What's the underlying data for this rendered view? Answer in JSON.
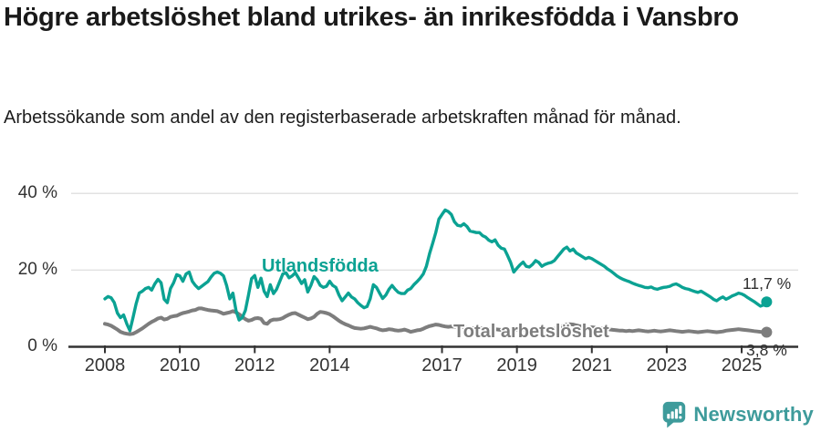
{
  "header": {
    "title": "Högre arbetslöshet bland utrikes- än inrikesfödda i Vansbro",
    "subtitle": "Arbetssökande som andel av den registerbaserade arbetskraften månad för månad."
  },
  "footer": {
    "brand": "Newsworthy",
    "brand_color": "#3E9B9B",
    "logo_icon": "newsworthy-speech-bubble-bars-icon"
  },
  "colors": {
    "foreign_born_line": "#0BA293",
    "total_line": "#7D7D7D",
    "grid": "#E2E2E2",
    "axis": "#333333",
    "text": "#1A1A1A"
  },
  "chart_data": {
    "type": "line",
    "title": "Högre arbetslöshet bland utrikes- än inrikesfödda i Vansbro",
    "subtitle": "Arbetssökande som andel av den registerbaserade arbetskraften månad för månad.",
    "xlabel": "",
    "ylabel": "",
    "unit": "%",
    "x_start_year": 2008,
    "x_step_months": 1,
    "x_end": "2025-09",
    "xlim": [
      2007.8,
      2026.5
    ],
    "ylim": [
      0,
      42
    ],
    "grid": "horizontal",
    "legend_position": "inline-labels",
    "x_ticks": [
      2008,
      2010,
      2012,
      2014,
      2017,
      2019,
      2021,
      2023,
      2025
    ],
    "y_ticks": [
      {
        "value": 0,
        "label": "0 %"
      },
      {
        "value": 20,
        "label": "20 %"
      },
      {
        "value": 40,
        "label": "40 %"
      }
    ],
    "series": [
      {
        "name": "Utlandsfödda",
        "color": "#0BA293",
        "end_label": "11,7 %",
        "end_value": 11.7,
        "values": [
          12.5,
          13.1,
          12.8,
          11.5,
          8.8,
          7.6,
          8.3,
          6.0,
          4.2,
          7.6,
          11.2,
          14.0,
          14.5,
          15.2,
          15.5,
          14.8,
          16.4,
          17.6,
          16.7,
          12.4,
          11.5,
          15.2,
          16.7,
          18.8,
          18.5,
          17.1,
          19.0,
          19.5,
          17.1,
          16.0,
          15.2,
          15.8,
          16.4,
          17.0,
          18.2,
          19.2,
          19.5,
          19.2,
          18.5,
          16.0,
          12.5,
          14.0,
          9.5,
          7.0,
          7.6,
          9.5,
          13.5,
          17.8,
          18.6,
          15.5,
          17.9,
          14.5,
          13.1,
          16.2,
          13.9,
          15.0,
          17.0,
          19.0,
          19.3,
          18.0,
          18.5,
          19.3,
          18.0,
          16.5,
          17.5,
          14.3,
          16.0,
          18.3,
          17.5,
          16.0,
          15.5,
          15.8,
          17.1,
          16.0,
          15.5,
          13.5,
          12.0,
          13.0,
          14.0,
          13.0,
          12.5,
          11.5,
          10.8,
          10.2,
          10.5,
          12.5,
          16.2,
          15.5,
          14.0,
          12.6,
          13.5,
          15.0,
          16.0,
          15.0,
          14.2,
          13.9,
          13.9,
          14.8,
          15.2,
          16.2,
          17.0,
          17.9,
          19.0,
          21.0,
          24.3,
          27.0,
          29.8,
          33.3,
          34.5,
          35.7,
          35.3,
          34.5,
          32.6,
          31.7,
          31.5,
          32.1,
          31.4,
          30.2,
          30.0,
          29.8,
          29.8,
          29.0,
          28.6,
          27.8,
          27.4,
          27.9,
          26.5,
          25.7,
          25.5,
          23.8,
          22.0,
          19.5,
          20.5,
          21.4,
          22.1,
          21.0,
          20.8,
          21.5,
          22.5,
          22.0,
          21.0,
          21.5,
          21.8,
          22.0,
          22.5,
          23.5,
          24.5,
          25.5,
          26.0,
          25.0,
          25.5,
          24.5,
          24.0,
          23.5,
          23.0,
          23.3,
          23.0,
          22.5,
          22.0,
          21.5,
          21.0,
          20.3,
          19.8,
          19.2,
          18.5,
          18.0,
          17.6,
          17.3,
          17.0,
          16.6,
          16.3,
          16.0,
          15.8,
          15.5,
          15.4,
          15.6,
          15.2,
          15.0,
          15.3,
          15.5,
          15.6,
          15.8,
          16.2,
          16.4,
          16.0,
          15.5,
          15.2,
          15.0,
          14.7,
          14.4,
          14.2,
          14.5,
          14.0,
          13.5,
          13.0,
          12.4,
          12.0,
          12.6,
          13.0,
          12.4,
          12.8,
          13.3,
          13.6,
          14.0,
          13.8,
          13.4,
          12.8,
          12.3,
          11.8,
          11.2,
          10.6,
          10.9,
          11.7
        ]
      },
      {
        "name": "Total arbetslöshet",
        "color": "#7D7D7D",
        "end_label": "3,8 %",
        "end_value": 3.8,
        "values": [
          6.0,
          5.8,
          5.5,
          5.0,
          4.5,
          3.9,
          3.6,
          3.4,
          3.3,
          3.4,
          3.8,
          4.3,
          4.8,
          5.4,
          6.0,
          6.5,
          6.9,
          7.4,
          7.6,
          7.1,
          7.3,
          7.8,
          8.0,
          8.1,
          8.5,
          8.8,
          9.0,
          9.2,
          9.5,
          9.6,
          10.0,
          10.0,
          9.8,
          9.6,
          9.5,
          9.4,
          9.3,
          9.0,
          8.6,
          8.8,
          9.0,
          9.3,
          9.0,
          8.5,
          7.8,
          7.2,
          6.8,
          7.0,
          7.4,
          7.5,
          7.3,
          6.2,
          6.0,
          6.8,
          7.1,
          7.1,
          7.2,
          7.5,
          8.0,
          8.4,
          8.7,
          8.8,
          8.4,
          8.0,
          7.6,
          7.2,
          7.4,
          7.8,
          8.6,
          9.1,
          9.0,
          8.8,
          8.5,
          8.0,
          7.4,
          6.8,
          6.3,
          5.9,
          5.6,
          5.2,
          4.9,
          4.8,
          4.7,
          4.8,
          5.0,
          5.2,
          5.0,
          4.8,
          4.5,
          4.3,
          4.4,
          4.6,
          4.5,
          4.3,
          4.2,
          4.3,
          4.5,
          4.2,
          3.9,
          4.1,
          4.3,
          4.4,
          4.7,
          5.1,
          5.4,
          5.6,
          5.8,
          5.7,
          5.5,
          5.3,
          5.2,
          5.3,
          5.2,
          5.1,
          5.2,
          5.1,
          5.0,
          4.9,
          4.8,
          4.8,
          4.9,
          4.8,
          4.7,
          4.6,
          4.5,
          4.6,
          4.5,
          4.4,
          4.3,
          4.2,
          4.2,
          4.3,
          4.4,
          4.5,
          4.4,
          4.3,
          4.2,
          4.3,
          4.4,
          4.3,
          4.2,
          4.3,
          4.4,
          4.5,
          4.7,
          4.8,
          5.2,
          5.6,
          5.8,
          5.9,
          5.8,
          5.6,
          5.4,
          5.2,
          5.0,
          5.0,
          5.1,
          5.0,
          4.9,
          4.8,
          4.7,
          4.6,
          4.5,
          4.4,
          4.3,
          4.2,
          4.2,
          4.1,
          4.2,
          4.1,
          4.2,
          4.3,
          4.2,
          4.1,
          4.0,
          4.1,
          4.2,
          4.1,
          4.0,
          4.1,
          4.2,
          4.3,
          4.2,
          4.1,
          4.0,
          3.9,
          4.0,
          4.1,
          4.0,
          3.9,
          3.8,
          3.9,
          4.0,
          4.1,
          4.0,
          3.9,
          3.8,
          3.9,
          4.0,
          4.2,
          4.3,
          4.4,
          4.5,
          4.6,
          4.5,
          4.4,
          4.3,
          4.2,
          4.1,
          4.0,
          3.9,
          3.8,
          3.8
        ]
      }
    ]
  }
}
